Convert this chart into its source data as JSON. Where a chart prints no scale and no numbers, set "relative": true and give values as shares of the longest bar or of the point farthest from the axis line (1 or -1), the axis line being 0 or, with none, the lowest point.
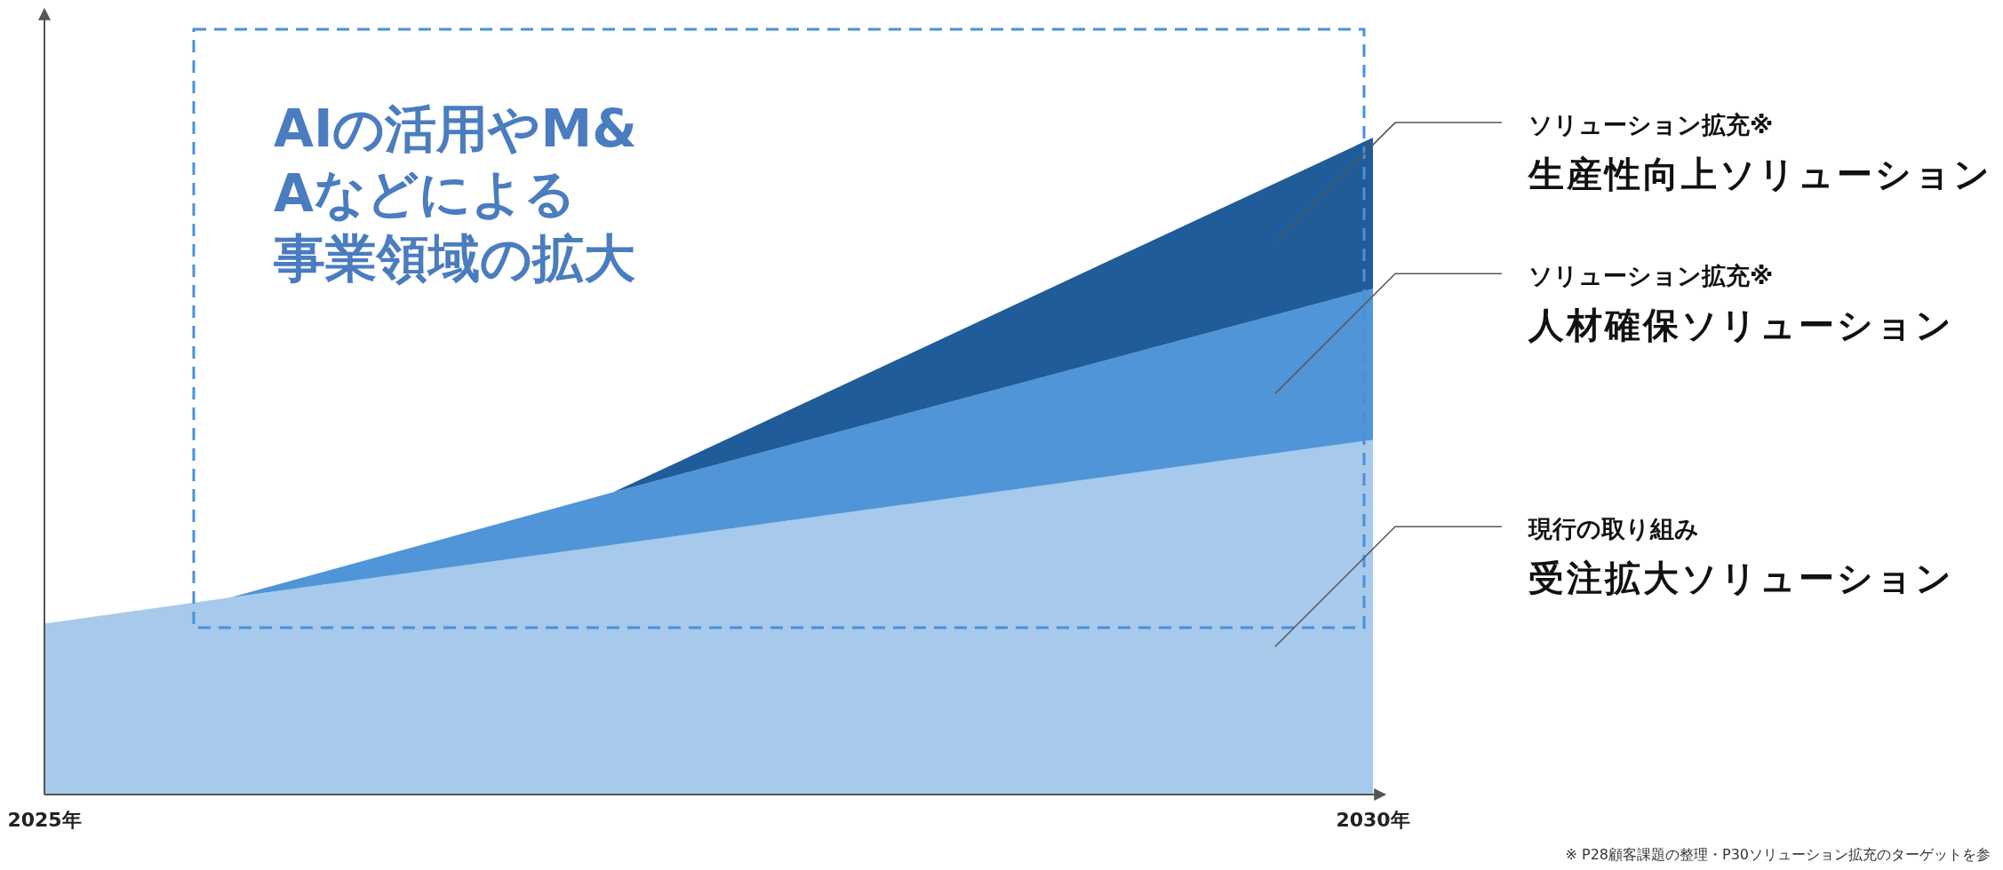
{
  "chart_data": {
    "type": "area",
    "stacked": true,
    "relative": true,
    "x": [
      2025,
      2025.7,
      2027.14,
      2030
    ],
    "xlim": [
      2025,
      2030
    ],
    "xticks": [
      {
        "value": 2025,
        "label": "2025年"
      },
      {
        "value": 2030,
        "label": "2030年"
      }
    ],
    "series": [
      {
        "name": "受注拡大ソリューション",
        "color": "#a7c9eb",
        "values": [
          0.26,
          0.3,
          0.38,
          0.54
        ]
      },
      {
        "name": "人材確保ソリューション",
        "color": "#4f95d8",
        "values": [
          0,
          0,
          0.08,
          0.23
        ]
      },
      {
        "name": "生産性向上ソリューション",
        "color": "#1f5c99",
        "values": [
          0,
          0,
          0,
          0.23
        ]
      }
    ],
    "annotations": [
      "AIの活用やM&Aなどによる事業領域の拡大",
      "現行の取り組み",
      "ソリューション拡充※",
      "ソリューション拡充※",
      "※ P28顧客課題の整理・P30ソリューション拡充のターゲットを参"
    ]
  }
}
